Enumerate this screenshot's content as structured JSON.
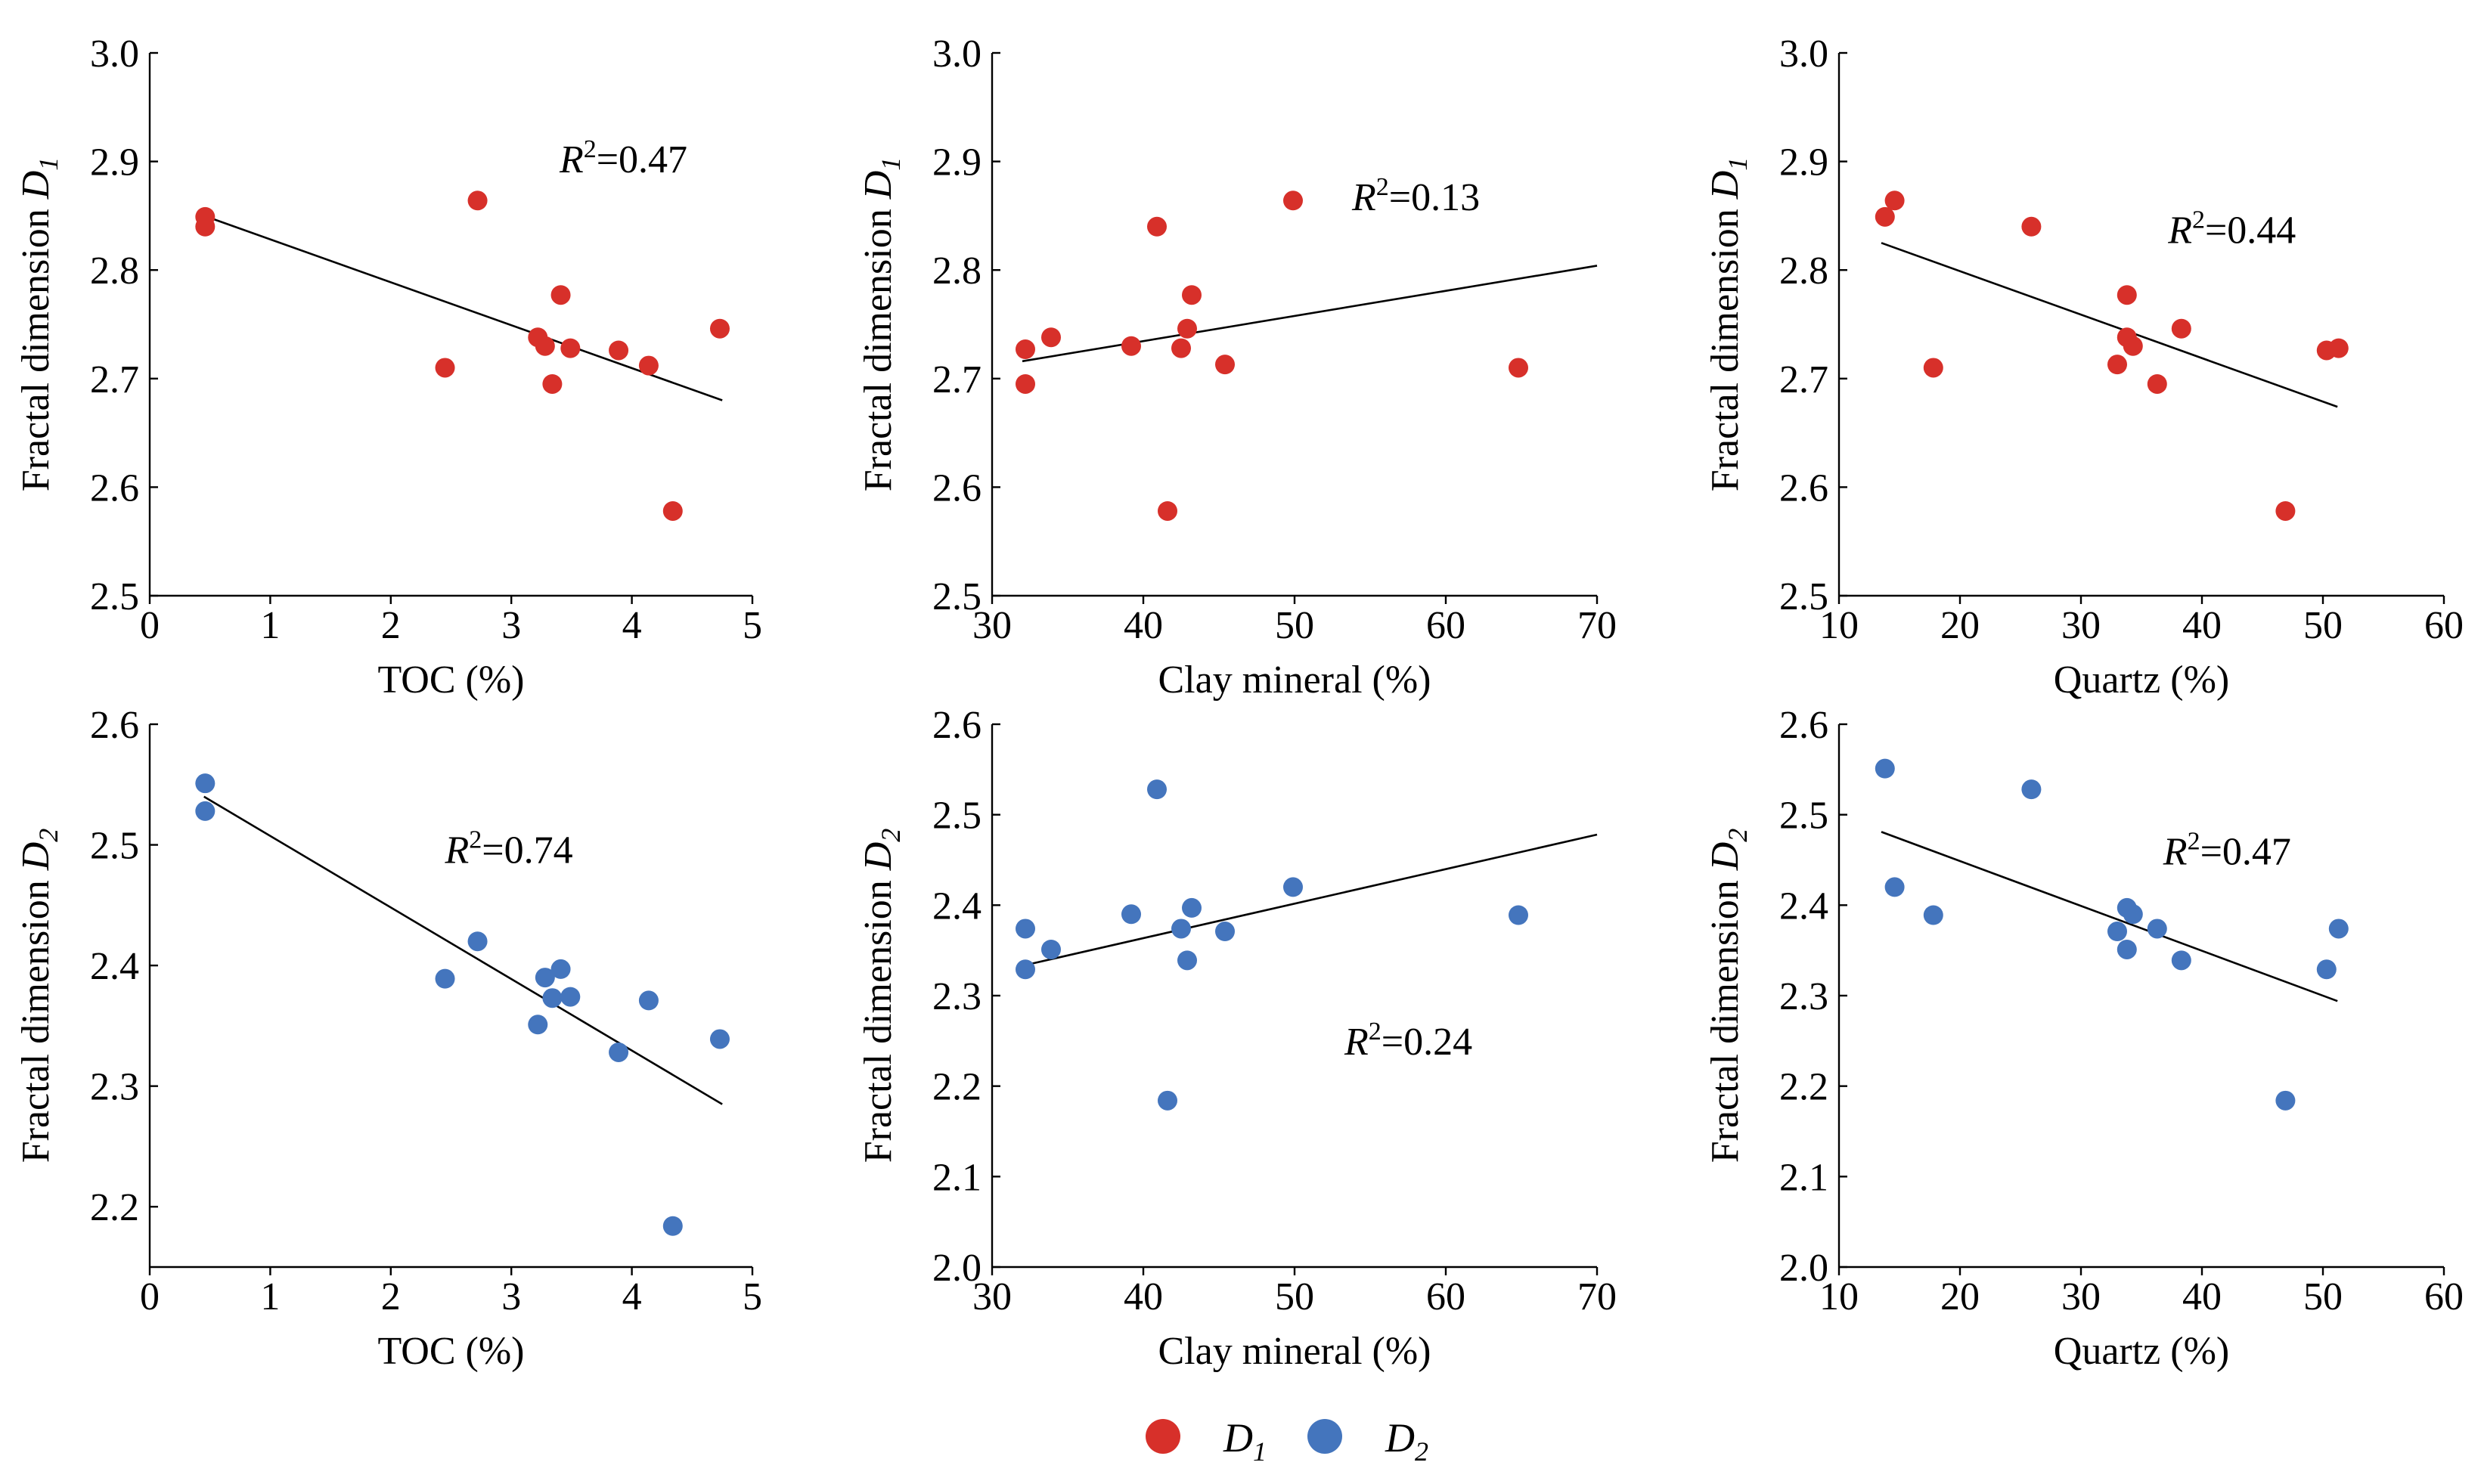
{
  "colors": {
    "d1": "#d7302a",
    "d2": "#4475bd",
    "axis": "#000000"
  },
  "legend": {
    "d1_label": "D",
    "d1_sub": "1",
    "d2_label": "D",
    "d2_sub": "2"
  },
  "chart_data": [
    {
      "type": "scatter",
      "row": 0,
      "col": 0,
      "series": "d1",
      "xlabel": "TOC (%)",
      "ylabel_main": "Fractal dimension ",
      "ylabel_var": "D",
      "ylabel_sub": "1",
      "xlim": [
        0,
        5
      ],
      "ylim": [
        2.5,
        3.0
      ],
      "xticks": [
        0,
        1,
        2,
        3,
        4,
        5
      ],
      "yticks": [
        2.5,
        2.6,
        2.7,
        2.8,
        2.9,
        3.0
      ],
      "xtick_labels": [
        "0",
        "1",
        "2",
        "3",
        "4",
        "5"
      ],
      "ytick_labels": [
        "2.5",
        "2.6",
        "2.7",
        "2.8",
        "2.9",
        "3.0"
      ],
      "x": [
        0.46,
        0.46,
        2.72,
        2.45,
        3.22,
        3.28,
        3.34,
        3.41,
        3.49,
        3.89,
        4.14,
        4.34,
        4.73
      ],
      "y": [
        2.849,
        2.84,
        2.864,
        2.71,
        2.738,
        2.73,
        2.695,
        2.777,
        2.728,
        2.726,
        2.712,
        2.578,
        2.746
      ],
      "fit": {
        "x": [
          0.45,
          4.75
        ],
        "y": [
          2.85,
          2.68
        ]
      },
      "r2_label": "R",
      "r2_sup": "2",
      "r2_value": "=0.47",
      "r2_at": [
        3.4,
        2.89
      ]
    },
    {
      "type": "scatter",
      "row": 0,
      "col": 1,
      "series": "d1",
      "xlabel": "Clay mineral (%)",
      "ylabel_main": "Fractal dimension ",
      "ylabel_var": "D",
      "ylabel_sub": "1",
      "xlim": [
        30,
        70
      ],
      "ylim": [
        2.5,
        3.0
      ],
      "xticks": [
        30,
        40,
        50,
        60,
        70
      ],
      "yticks": [
        2.5,
        2.6,
        2.7,
        2.8,
        2.9,
        3.0
      ],
      "xtick_labels": [
        "30",
        "40",
        "50",
        "60",
        "70"
      ],
      "ytick_labels": [
        "2.5",
        "2.6",
        "2.7",
        "2.8",
        "2.9",
        "3.0"
      ],
      "x": [
        32.2,
        32.2,
        33.9,
        39.2,
        40.9,
        41.6,
        42.5,
        42.9,
        43.2,
        45.4,
        49.9,
        64.8
      ],
      "y": [
        2.727,
        2.695,
        2.738,
        2.73,
        2.84,
        2.578,
        2.728,
        2.746,
        2.777,
        2.713,
        2.864,
        2.71
      ],
      "fit": {
        "x": [
          32.0,
          70.0
        ],
        "y": [
          2.716,
          2.804
        ]
      },
      "r2_label": "R",
      "r2_sup": "2",
      "r2_value": "=0.13",
      "r2_at": [
        53.8,
        2.855
      ]
    },
    {
      "type": "scatter",
      "row": 0,
      "col": 2,
      "series": "d1",
      "xlabel": "Quartz (%)",
      "ylabel_main": "Fractal dimension ",
      "ylabel_var": "D",
      "ylabel_sub": "1",
      "xlim": [
        10,
        60
      ],
      "ylim": [
        2.5,
        3.0
      ],
      "xticks": [
        10,
        20,
        30,
        40,
        50,
        60
      ],
      "yticks": [
        2.5,
        2.6,
        2.7,
        2.8,
        2.9,
        3.0
      ],
      "xtick_labels": [
        "10",
        "20",
        "30",
        "40",
        "50",
        "60"
      ],
      "ytick_labels": [
        "2.5",
        "2.6",
        "2.7",
        "2.8",
        "2.9",
        "3.0"
      ],
      "x": [
        13.8,
        14.6,
        17.8,
        25.9,
        33.0,
        33.8,
        33.8,
        34.3,
        36.3,
        38.3,
        46.9,
        50.3,
        51.3
      ],
      "y": [
        2.849,
        2.864,
        2.71,
        2.84,
        2.713,
        2.777,
        2.738,
        2.73,
        2.695,
        2.746,
        2.578,
        2.726,
        2.728
      ],
      "fit": {
        "x": [
          13.5,
          51.2
        ],
        "y": [
          2.825,
          2.674
        ]
      },
      "r2_label": "R",
      "r2_sup": "2",
      "r2_value": "=0.44",
      "r2_at": [
        37.2,
        2.825
      ]
    },
    {
      "type": "scatter",
      "row": 1,
      "col": 0,
      "series": "d2",
      "xlabel": "TOC (%)",
      "ylabel_main": "Fractal dimension ",
      "ylabel_var": "D",
      "ylabel_sub": "2",
      "xlim": [
        0,
        5
      ],
      "ylim": [
        2.15,
        2.6
      ],
      "xticks": [
        0,
        1,
        2,
        3,
        4,
        5
      ],
      "yticks": [
        2.2,
        2.3,
        2.4,
        2.5,
        2.6
      ],
      "xtick_labels": [
        "0",
        "1",
        "2",
        "3",
        "4",
        "5"
      ],
      "ytick_labels": [
        "2.2",
        "2.3",
        "2.4",
        "2.5",
        "2.6"
      ],
      "x": [
        0.46,
        0.46,
        2.72,
        2.45,
        3.22,
        3.28,
        3.34,
        3.41,
        3.49,
        3.89,
        4.14,
        4.34,
        4.73
      ],
      "y": [
        2.551,
        2.528,
        2.42,
        2.389,
        2.351,
        2.39,
        2.373,
        2.397,
        2.374,
        2.328,
        2.371,
        2.184,
        2.339
      ],
      "fit": {
        "x": [
          0.45,
          4.75
        ],
        "y": [
          2.54,
          2.285
        ]
      },
      "r2_label": "R",
      "r2_sup": "2",
      "r2_value": "=0.74",
      "r2_at": [
        2.45,
        2.485
      ]
    },
    {
      "type": "scatter",
      "row": 1,
      "col": 1,
      "series": "d2",
      "xlabel": "Clay mineral (%)",
      "ylabel_main": "Fractal dimension ",
      "ylabel_var": "D",
      "ylabel_sub": "2",
      "xlim": [
        30,
        70
      ],
      "ylim": [
        2.0,
        2.6
      ],
      "xticks": [
        30,
        40,
        50,
        60,
        70
      ],
      "yticks": [
        2.0,
        2.1,
        2.2,
        2.3,
        2.4,
        2.5,
        2.6
      ],
      "xtick_labels": [
        "30",
        "40",
        "50",
        "60",
        "70"
      ],
      "ytick_labels": [
        "2.0",
        "2.1",
        "2.2",
        "2.3",
        "2.4",
        "2.5",
        "2.6"
      ],
      "x": [
        32.2,
        32.2,
        33.9,
        39.2,
        40.9,
        41.6,
        42.5,
        42.9,
        43.2,
        45.4,
        49.9,
        64.8
      ],
      "y": [
        2.374,
        2.329,
        2.351,
        2.39,
        2.528,
        2.184,
        2.374,
        2.339,
        2.397,
        2.371,
        2.42,
        2.389
      ],
      "fit": {
        "x": [
          32.0,
          70.0
        ],
        "y": [
          2.333,
          2.478
        ]
      },
      "r2_label": "R",
      "r2_sup": "2",
      "r2_value": "=0.24",
      "r2_at": [
        53.3,
        2.235
      ]
    },
    {
      "type": "scatter",
      "row": 1,
      "col": 2,
      "series": "d2",
      "xlabel": "Quartz (%)",
      "ylabel_main": "Fractal dimension ",
      "ylabel_var": "D",
      "ylabel_sub": "2",
      "xlim": [
        10,
        60
      ],
      "ylim": [
        2.0,
        2.6
      ],
      "xticks": [
        10,
        20,
        30,
        40,
        50,
        60
      ],
      "yticks": [
        2.0,
        2.1,
        2.2,
        2.3,
        2.4,
        2.5,
        2.6
      ],
      "xtick_labels": [
        "10",
        "20",
        "30",
        "40",
        "50",
        "60"
      ],
      "ytick_labels": [
        "2.0",
        "2.1",
        "2.2",
        "2.3",
        "2.4",
        "2.5",
        "2.6"
      ],
      "x": [
        13.8,
        14.6,
        17.8,
        25.9,
        33.0,
        33.8,
        33.8,
        34.3,
        36.3,
        38.3,
        46.9,
        50.3,
        51.3
      ],
      "y": [
        2.551,
        2.42,
        2.389,
        2.528,
        2.371,
        2.397,
        2.351,
        2.39,
        2.374,
        2.339,
        2.184,
        2.329,
        2.374
      ],
      "fit": {
        "x": [
          13.5,
          51.2
        ],
        "y": [
          2.481,
          2.294
        ]
      },
      "r2_label": "R",
      "r2_sup": "2",
      "r2_value": "=0.47",
      "r2_at": [
        36.8,
        2.445
      ]
    }
  ]
}
